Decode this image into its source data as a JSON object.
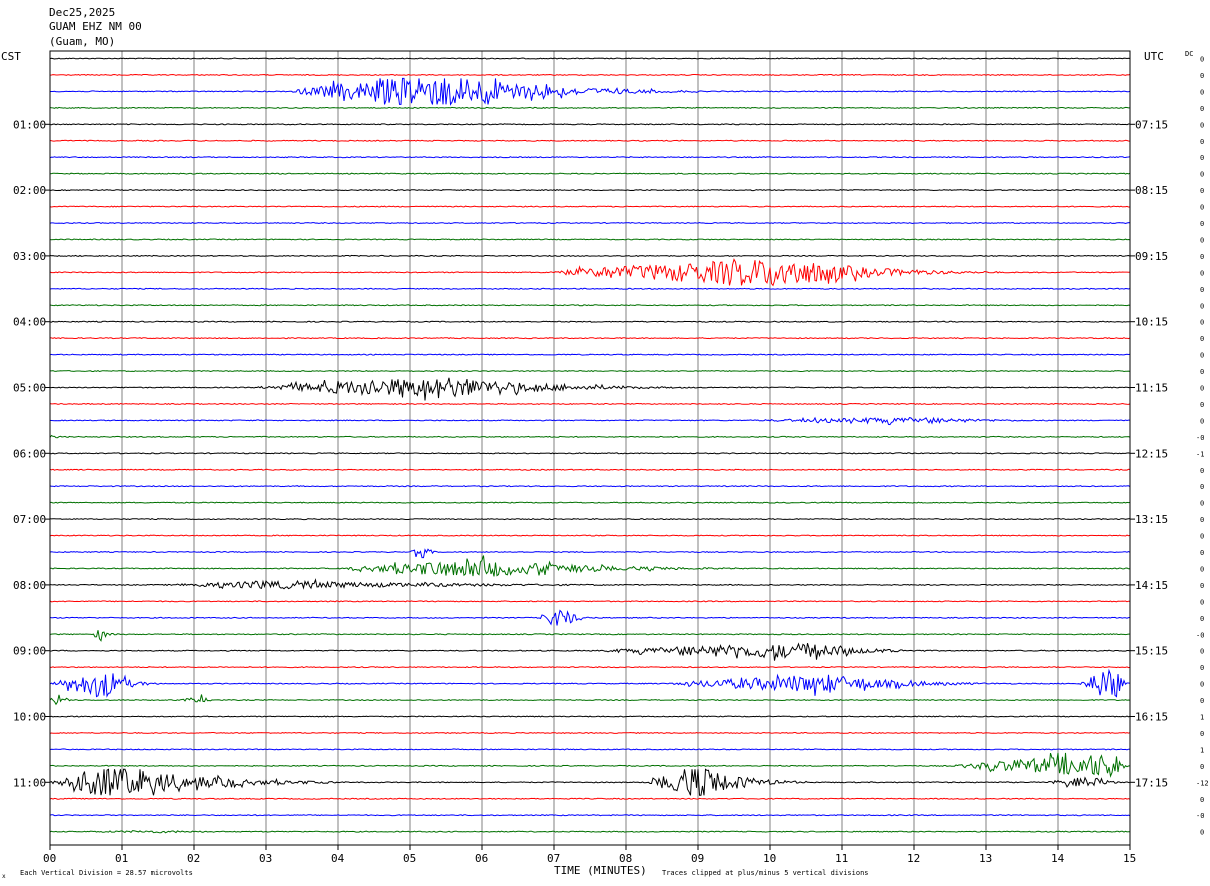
{
  "header": {
    "date": "Dec25,2025",
    "station": "GUAM EHZ NM 00",
    "location": "(Guam, MO)"
  },
  "left_axis_title": "CST",
  "right_axis_title": "UTC",
  "dc_label": "DC",
  "footer": {
    "scale_note": "Each Vertical Division =   28.57 microvolts",
    "clip_note": "Traces clipped at plus/minus 5 vertical divisions",
    "corner_mark": "x"
  },
  "colors": {
    "trace_cycle": [
      "#000000",
      "#ff0000",
      "#0000ff",
      "#007000"
    ],
    "grid": "#808080",
    "text": "#000000"
  },
  "chart_data": {
    "type": "line",
    "title": "GUAM EHZ NM 00",
    "xlabel": "TIME (MINUTES)",
    "xlim": [
      0,
      15
    ],
    "x_ticks": [
      "00",
      "01",
      "02",
      "03",
      "04",
      "05",
      "06",
      "07",
      "08",
      "09",
      "10",
      "11",
      "12",
      "13",
      "14",
      "15"
    ],
    "trace_count": 48,
    "minutes_per_trace": 15,
    "left_hour_labels": [
      "01:00",
      "02:00",
      "03:00",
      "04:00",
      "05:00",
      "06:00",
      "07:00",
      "08:00",
      "09:00",
      "10:00",
      "11:00"
    ],
    "right_hour_labels": [
      "07:15",
      "08:15",
      "09:15",
      "10:15",
      "11:15",
      "12:15",
      "13:15",
      "14:15",
      "15:15",
      "16:15",
      "17:15"
    ],
    "hour_label_rows": [
      4,
      8,
      12,
      16,
      20,
      24,
      28,
      32,
      36,
      40,
      44
    ],
    "dc_values": [
      "0",
      "0",
      "0",
      "0",
      "0",
      "0",
      "0",
      "0",
      "0",
      "0",
      "0",
      "0",
      "0",
      "0",
      "0",
      "0",
      "0",
      "0",
      "0",
      "0",
      "0",
      "0",
      "0",
      "-0",
      "-1",
      "0",
      "0",
      "0",
      "0",
      "0",
      "0",
      "0",
      "0",
      "0",
      "0",
      "-0",
      "0",
      "0",
      "0",
      "0",
      "1",
      "0",
      "1",
      "0",
      "-12",
      "0",
      "-0",
      "0"
    ],
    "events": [
      {
        "row": 2,
        "start_min": 3.3,
        "end_min": 9.0,
        "peak_min": 5.5,
        "amplitude_div": 5,
        "kind": "quake"
      },
      {
        "row": 13,
        "start_min": 6.8,
        "end_min": 13.2,
        "peak_min": 10.3,
        "amplitude_div": 4,
        "kind": "quake"
      },
      {
        "row": 20,
        "start_min": 2.8,
        "end_min": 9.0,
        "peak_min": 5.5,
        "amplitude_div": 3,
        "kind": "quake"
      },
      {
        "row": 22,
        "start_min": 9.5,
        "end_min": 15.0,
        "peak_min": 12.0,
        "amplitude_div": 1.2,
        "kind": "noise"
      },
      {
        "row": 23,
        "start_min": 0.0,
        "end_min": 0.5,
        "peak_min": 0.0,
        "amplitude_div": 0.6,
        "kind": "noise"
      },
      {
        "row": 30,
        "start_min": 5.0,
        "end_min": 5.4,
        "peak_min": 5.2,
        "amplitude_div": 1.8,
        "kind": "burst"
      },
      {
        "row": 31,
        "start_min": 4.0,
        "end_min": 10.0,
        "peak_min": 6.0,
        "amplitude_div": 2.5,
        "kind": "quake"
      },
      {
        "row": 32,
        "start_min": 1.5,
        "end_min": 10.0,
        "peak_min": 3.0,
        "amplitude_div": 1.2,
        "kind": "quake"
      },
      {
        "row": 34,
        "start_min": 6.8,
        "end_min": 7.6,
        "peak_min": 7.1,
        "amplitude_div": 3.0,
        "kind": "burst"
      },
      {
        "row": 35,
        "start_min": 0.6,
        "end_min": 1.0,
        "peak_min": 0.7,
        "amplitude_div": 1.5,
        "kind": "burst"
      },
      {
        "row": 36,
        "start_min": 7.5,
        "end_min": 12.5,
        "peak_min": 10.5,
        "amplitude_div": 2.2,
        "kind": "quake"
      },
      {
        "row": 38,
        "start_min": 0.0,
        "end_min": 1.5,
        "peak_min": 0.8,
        "amplitude_div": 4.0,
        "kind": "burst"
      },
      {
        "row": 38,
        "start_min": 8.5,
        "end_min": 13.5,
        "peak_min": 10.8,
        "amplitude_div": 2.5,
        "kind": "quake"
      },
      {
        "row": 38,
        "start_min": 14.3,
        "end_min": 15.0,
        "peak_min": 14.8,
        "amplitude_div": 5,
        "kind": "burst"
      },
      {
        "row": 39,
        "start_min": 0.0,
        "end_min": 0.4,
        "peak_min": 0.1,
        "amplitude_div": 2.0,
        "kind": "burst"
      },
      {
        "row": 39,
        "start_min": 1.8,
        "end_min": 2.4,
        "peak_min": 2.1,
        "amplitude_div": 1.0,
        "kind": "burst"
      },
      {
        "row": 43,
        "start_min": 12.5,
        "end_min": 15.0,
        "peak_min": 14.8,
        "amplitude_div": 3.5,
        "kind": "quake"
      },
      {
        "row": 44,
        "start_min": 0.0,
        "end_min": 4.0,
        "peak_min": 0.8,
        "amplitude_div": 5,
        "kind": "quake"
      },
      {
        "row": 44,
        "start_min": 8.3,
        "end_min": 10.5,
        "peak_min": 9.0,
        "amplitude_div": 5,
        "kind": "quake"
      },
      {
        "row": 44,
        "start_min": 13.8,
        "end_min": 15.0,
        "peak_min": 14.5,
        "amplitude_div": 1.5,
        "kind": "burst"
      },
      {
        "row": 47,
        "start_min": 0.0,
        "end_min": 4.5,
        "peak_min": 1.5,
        "amplitude_div": 0.5,
        "kind": "noise"
      }
    ]
  }
}
